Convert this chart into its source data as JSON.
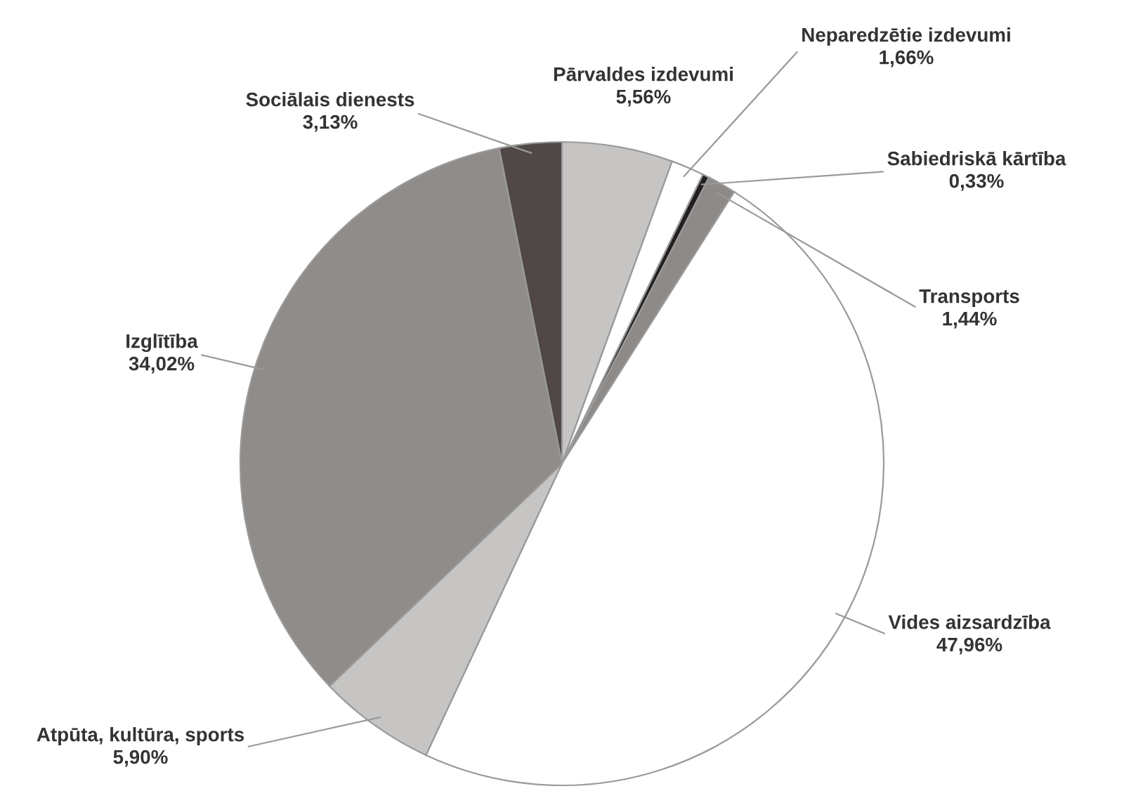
{
  "chart_data": {
    "type": "pie",
    "categories": [
      "Pārvaldes izdevumi",
      "Neparedzētie izdevumi",
      "Sabiedriskā kārtība",
      "Transports",
      "Vides aizsardzība",
      "Atpūta, kultūra, sports",
      "Izglītība",
      "Sociālais dienests"
    ],
    "values": [
      5.56,
      1.66,
      0.33,
      1.44,
      47.96,
      5.9,
      34.02,
      3.13
    ],
    "colors": [
      "#c6c5c4",
      "#ffffff",
      "#231f20",
      "#8d8a88",
      "#ffffff",
      "#c6c5c4",
      "#8f8c8a",
      "#504846"
    ],
    "value_labels": [
      "5,56%",
      "1,66%",
      "0,33%",
      "1,44%",
      "47,96%",
      "5,90%",
      "34,02%",
      "3,13%"
    ],
    "legend": false
  }
}
